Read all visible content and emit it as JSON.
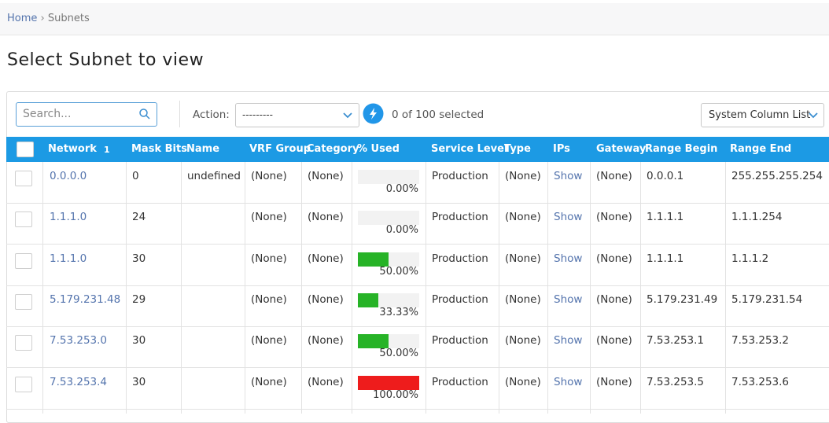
{
  "breadcrumb": {
    "home": "Home",
    "separator": "›",
    "current": "Subnets"
  },
  "title": "Select Subnet to view",
  "toolbar": {
    "search_placeholder": "Search...",
    "action_label": "Action:",
    "action_value": "---------",
    "selection": "0 of 100 selected",
    "column_button": "System Column List"
  },
  "table": {
    "columns": [
      "Network",
      "Mask Bits",
      "Name",
      "VRF Group",
      "Category",
      "% Used",
      "Service Level",
      "Type",
      "IPs",
      "Gateway",
      "Range Begin",
      "Range End"
    ],
    "sort_indicator": "1",
    "rows": [
      {
        "network": "0.0.0.0",
        "mask_bits": 0,
        "name": "undefined",
        "vrf_group": "(None)",
        "category": "(None)",
        "used": {
          "value": 0,
          "label": "0.00%"
        },
        "bar_color": "#27b327",
        "service_level": "Production",
        "type": "(None)",
        "ips": "Show",
        "gateway": "(None)",
        "range_begin": "0.0.0.1",
        "range_end": "255.255.255.254"
      },
      {
        "network": "1.1.1.0",
        "mask_bits": 24,
        "vrf_group": "(None)",
        "category": "(None)",
        "used": {
          "value": 0,
          "label": "0.00%"
        },
        "bar_color": "#27b327",
        "service_level": "Production",
        "type": "(None)",
        "ips": "Show",
        "gateway": "(None)",
        "range_begin": "1.1.1.1",
        "range_end": "1.1.1.254"
      },
      {
        "network": "1.1.1.0",
        "mask_bits": 30,
        "vrf_group": "(None)",
        "category": "(None)",
        "used": {
          "value": 50,
          "label": "50.00%"
        },
        "bar_color": "#27b327",
        "service_level": "Production",
        "type": "(None)",
        "ips": "Show",
        "gateway": "(None)",
        "range_begin": "1.1.1.1",
        "range_end": "1.1.1.2"
      },
      {
        "network": "5.179.231.48",
        "mask_bits": 29,
        "vrf_group": "(None)",
        "category": "(None)",
        "used": {
          "value": 33.33,
          "label": "33.33%"
        },
        "bar_color": "#27b327",
        "service_level": "Production",
        "type": "(None)",
        "ips": "Show",
        "gateway": "(None)",
        "range_begin": "5.179.231.49",
        "range_end": "5.179.231.54"
      },
      {
        "network": "7.53.253.0",
        "mask_bits": 30,
        "vrf_group": "(None)",
        "category": "(None)",
        "used": {
          "value": 50,
          "label": "50.00%"
        },
        "bar_color": "#27b327",
        "service_level": "Production",
        "type": "(None)",
        "ips": "Show",
        "gateway": "(None)",
        "range_begin": "7.53.253.1",
        "range_end": "7.53.253.2"
      },
      {
        "network": "7.53.253.4",
        "mask_bits": 30,
        "vrf_group": "(None)",
        "category": "(None)",
        "used": {
          "value": 100,
          "label": "100.00%"
        },
        "bar_color": "#ee1c1c",
        "service_level": "Production",
        "type": "(None)",
        "ips": "Show",
        "gateway": "(None)",
        "range_begin": "7.53.253.5",
        "range_end": "7.53.253.6"
      }
    ]
  }
}
